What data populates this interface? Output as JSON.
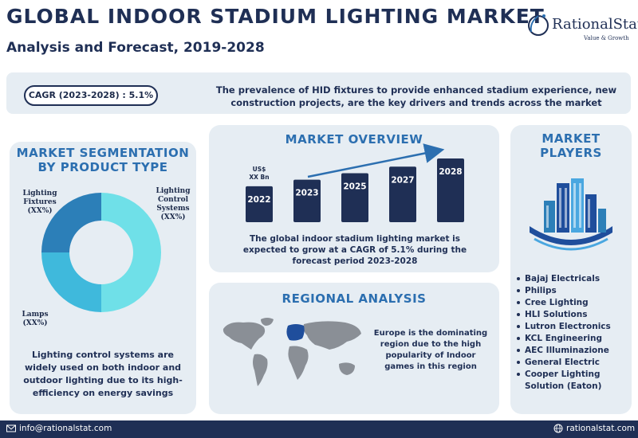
{
  "header": {
    "title": "GLOBAL INDOOR STADIUM LIGHTING MARKET",
    "subtitle": "Analysis and Forecast, 2019-2028"
  },
  "logo": {
    "name": "RationalStat",
    "tagline": "Value & Growth",
    "icon": "ring-logo-icon"
  },
  "banner": {
    "cagr": "CAGR (2023-2028) : 5.1%",
    "text": "The prevalence of HID fixtures to provide enhanced stadium experience, new construction projects, are the key drivers and trends across the market"
  },
  "segmentation": {
    "heading_line1": "MARKET SEGMENTATION",
    "heading_line2": "BY PRODUCT TYPE",
    "labels": [
      {
        "line1": "Lighting",
        "line2": "Fixtures",
        "line3": "(XX%)"
      },
      {
        "line1": "Lighting",
        "line2": "Control",
        "line3": "Systems",
        "line4": "(XX%)"
      },
      {
        "line1": "Lamps",
        "line2": "(XX%)"
      }
    ],
    "description": "Lighting control systems are widely used on both indoor and outdoor lighting due to its high-efficiency on energy savings"
  },
  "overview": {
    "heading": "MARKET OVERVIEW",
    "unit_line1": "US$",
    "unit_line2": "XX Bn",
    "description": "The global indoor stadium lighting market is expected to grow at a CAGR of 5.1% during the forecast period 2023-2028"
  },
  "chart_data": {
    "type": "bar",
    "categories": [
      "2022",
      "2023",
      "2025",
      "2027",
      "2028"
    ],
    "values": [
      44,
      52,
      60,
      68,
      78
    ],
    "ylabel": "US$ XX Bn",
    "color": "#1f2f55",
    "trend_arrow": true
  },
  "regional": {
    "heading": "REGIONAL ANALYSIS",
    "description": "Europe is the dominating region due to the high popularity of Indoor games in this region"
  },
  "players": {
    "heading_line1": "MARKET",
    "heading_line2": "PLAYERS",
    "icon": "buildings-icon",
    "list": [
      {
        "line1": "Bajaj Electricals"
      },
      {
        "line1": "Philips"
      },
      {
        "line1": "Cree Lighting"
      },
      {
        "line1": "HLI Solutions"
      },
      {
        "line1": "Lutron Electronics"
      },
      {
        "line1": "KCL Engineering"
      },
      {
        "line1": "AEC Illuminazione"
      },
      {
        "line1": "General Electric"
      },
      {
        "line1": "Cooper Lighting",
        "line2": "Solution (Eaton)"
      }
    ]
  },
  "footer": {
    "email": "info@rationalstat.com",
    "website": "rationalstat.com"
  }
}
